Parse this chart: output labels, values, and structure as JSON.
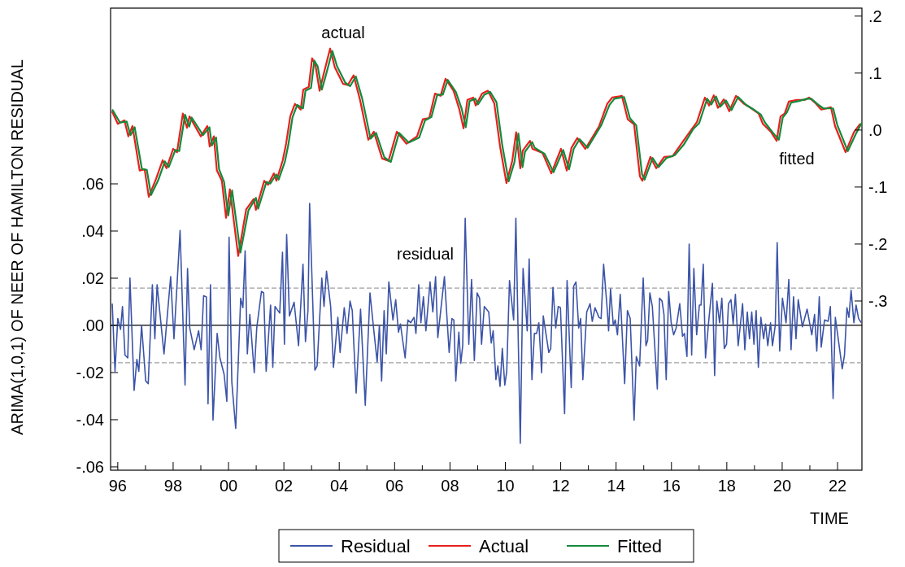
{
  "chart_data": {
    "type": "line",
    "xlabel": "TIME",
    "ylabel": "ARIMA(1,0,1) OF NEER OF HAMILTON RESIDUAL",
    "xlim": [
      1995.74,
      2022.88
    ],
    "xticks": [
      {
        "value": 1996,
        "label": "96"
      },
      {
        "value": 1997,
        "label": null
      },
      {
        "value": 1998,
        "label": "98"
      },
      {
        "value": 1999,
        "label": null
      },
      {
        "value": 2000,
        "label": "00"
      },
      {
        "value": 2001,
        "label": null
      },
      {
        "value": 2002,
        "label": "02"
      },
      {
        "value": 2003,
        "label": null
      },
      {
        "value": 2004,
        "label": "04"
      },
      {
        "value": 2005,
        "label": null
      },
      {
        "value": 2006,
        "label": "06"
      },
      {
        "value": 2007,
        "label": null
      },
      {
        "value": 2008,
        "label": "08"
      },
      {
        "value": 2009,
        "label": null
      },
      {
        "value": 2010,
        "label": "10"
      },
      {
        "value": 2011,
        "label": null
      },
      {
        "value": 2012,
        "label": "12"
      },
      {
        "value": 2013,
        "label": null
      },
      {
        "value": 2014,
        "label": "14"
      },
      {
        "value": 2015,
        "label": null
      },
      {
        "value": 2016,
        "label": "16"
      },
      {
        "value": 2017,
        "label": null
      },
      {
        "value": 2018,
        "label": "18"
      },
      {
        "value": 2019,
        "label": null
      },
      {
        "value": 2020,
        "label": "20"
      },
      {
        "value": 2021,
        "label": null
      },
      {
        "value": 2022,
        "label": "22"
      }
    ],
    "ylim": [
      -0.0614,
      0.1345
    ],
    "yticks": [
      {
        "value": -0.06,
        "label": "-.06"
      },
      {
        "value": -0.04,
        "label": "-.04"
      },
      {
        "value": -0.02,
        "label": "-.02"
      },
      {
        "value": 0,
        "label": ".00"
      },
      {
        "value": 0.02,
        "label": ".02"
      },
      {
        "value": 0.04,
        "label": ".04"
      },
      {
        "value": 0.06,
        "label": ".06"
      }
    ],
    "y2lim": [
      -0.597,
      0.214
    ],
    "y2ticks": [
      {
        "value": -0.3,
        "label": "-.3"
      },
      {
        "value": -0.2,
        "label": "-.2"
      },
      {
        "value": -0.1,
        "label": "-.1"
      },
      {
        "value": 0,
        "label": ".0"
      },
      {
        "value": 0.1,
        "label": ".1"
      },
      {
        "value": 0.2,
        "label": ".2"
      }
    ],
    "grid": false,
    "legend": "bottom",
    "marker": "none",
    "line_style": "solid",
    "ref_lines": [
      {
        "axis": "y",
        "value": 0,
        "color": "#000000",
        "line_style": "solid"
      },
      {
        "axis": "y",
        "value": 0.0158,
        "color": "#a0a0a0",
        "line_style": "dashed"
      },
      {
        "axis": "y",
        "value": -0.0158,
        "color": "#a0a0a0",
        "line_style": "dashed"
      }
    ],
    "annotations": [
      "actual",
      "fitted",
      "residual"
    ],
    "series": [
      {
        "name": "Residual",
        "color": "#3c54a8",
        "x": [
          1995.8,
          1995.9,
          1996.0,
          1996.1,
          1996.17,
          1996.26,
          1996.36,
          1996.44,
          1996.59,
          1996.69,
          1996.76,
          1996.86,
          1997.01,
          1997.1,
          1997.25,
          1997.34,
          1997.42,
          1997.67,
          1997.91,
          1998.03,
          1998.25,
          1998.43,
          1998.52,
          1998.6,
          1998.76,
          1998.92,
          1999.01,
          1999.1,
          1999.2,
          1999.26,
          1999.35,
          1999.44,
          1999.59,
          1999.69,
          1999.84,
          1999.94,
          2000.02,
          2000.12,
          2000.26,
          2000.44,
          2000.52,
          2000.6,
          2000.68,
          2000.77,
          2000.93,
          2001.02,
          2001.19,
          2001.27,
          2001.36,
          2001.52,
          2001.6,
          2001.68,
          2001.85,
          2001.95,
          2002.02,
          2002.1,
          2002.2,
          2002.37,
          2002.53,
          2002.69,
          2002.78,
          2002.87,
          2002.93,
          2003.12,
          2003.2,
          2003.37,
          2003.45,
          2003.54,
          2003.69,
          2003.79,
          2003.95,
          2004.03,
          2004.18,
          2004.28,
          2004.39,
          2004.47,
          2004.61,
          2004.77,
          2004.94,
          2005.11,
          2005.25,
          2005.37,
          2005.45,
          2005.53,
          2005.62,
          2005.7,
          2005.79,
          2005.94,
          2006.04,
          2006.14,
          2006.21,
          2006.38,
          2006.48,
          2006.58,
          2006.7,
          2006.77,
          2006.87,
          2006.95,
          2007.04,
          2007.13,
          2007.28,
          2007.38,
          2007.48,
          2007.56,
          2007.65,
          2007.8,
          2007.97,
          2008.07,
          2008.14,
          2008.21,
          2008.32,
          2008.39,
          2008.46,
          2008.55,
          2008.68,
          2008.78,
          2008.88,
          2008.98,
          2009.07,
          2009.14,
          2009.24,
          2009.4,
          2009.49,
          2009.56,
          2009.66,
          2009.73,
          2009.81,
          2009.89,
          2009.98,
          2010.05,
          2010.15,
          2010.3,
          2010.38,
          2010.54,
          2010.64,
          2010.79,
          2010.86,
          2010.96,
          2011.05,
          2011.13,
          2011.21,
          2011.31,
          2011.37,
          2011.57,
          2011.64,
          2011.72,
          2011.82,
          2011.91,
          2011.99,
          2012.14,
          2012.23,
          2012.38,
          2012.47,
          2012.55,
          2012.65,
          2012.72,
          2012.8,
          2012.94,
          2013.06,
          2013.14,
          2013.24,
          2013.38,
          2013.46,
          2013.55,
          2013.68,
          2013.73,
          2013.8,
          2013.9,
          2013.97,
          2014.05,
          2014.15,
          2014.31,
          2014.41,
          2014.51,
          2014.65,
          2014.73,
          2014.85,
          2014.98,
          2015.08,
          2015.14,
          2015.22,
          2015.31,
          2015.49,
          2015.57,
          2015.66,
          2015.73,
          2015.81,
          2015.9,
          2015.99,
          2016.08,
          2016.17,
          2016.3,
          2016.4,
          2016.47,
          2016.56,
          2016.64,
          2016.73,
          2016.81,
          2016.91,
          2017.01,
          2017.07,
          2017.15,
          2017.23,
          2017.35,
          2017.48,
          2017.56,
          2017.64,
          2017.74,
          2017.82,
          2017.91,
          2017.99,
          2018.06,
          2018.15,
          2018.23,
          2018.31,
          2018.41,
          2018.57,
          2018.65,
          2018.74,
          2018.82,
          2018.9,
          2018.98,
          2019.06,
          2019.14,
          2019.23,
          2019.33,
          2019.4,
          2019.48,
          2019.58,
          2019.65,
          2019.75,
          2019.82,
          2019.91,
          2020.01,
          2020.14,
          2020.24,
          2020.32,
          2020.41,
          2020.5,
          2020.58,
          2020.73,
          2020.9,
          2021.07,
          2021.17,
          2021.25,
          2021.34,
          2021.41,
          2021.53,
          2021.66,
          2021.74,
          2021.84,
          2021.92,
          2022.17,
          2022.25,
          2022.34,
          2022.41,
          2022.49,
          2022.59,
          2022.67,
          2022.76,
          2022.86
        ],
        "values": [
          0.0092,
          -0.0195,
          0.0029,
          -0.0017,
          0.008,
          -0.0126,
          -0.0138,
          0.0201,
          -0.0276,
          -0.0144,
          -0.0195,
          0.0,
          -0.0236,
          -0.0247,
          0.0172,
          -0.0057,
          0.0172,
          -0.0121,
          0.0207,
          -0.0057,
          0.0402,
          -0.0253,
          0.0241,
          -0.0011,
          -0.0103,
          -0.0023,
          -0.0103,
          0.0126,
          0.0121,
          -0.0333,
          0.0172,
          -0.0402,
          -0.0034,
          -0.0138,
          -0.0207,
          -0.0322,
          0.0374,
          -0.0241,
          -0.0437,
          0.0115,
          0.0075,
          0.0316,
          -0.0121,
          0.0046,
          -0.0201,
          -0.0011,
          0.0144,
          0.0138,
          -0.0195,
          0.0086,
          -0.0178,
          0.008,
          0.0052,
          0.031,
          -0.008,
          0.0385,
          0.004,
          0.0098,
          -0.0086,
          0.0259,
          -0.0069,
          0.0063,
          0.0517,
          -0.019,
          -0.0172,
          0.0201,
          0.008,
          0.023,
          0.008,
          -0.0178,
          0.0034,
          -0.0115,
          0.0075,
          -0.0034,
          0.0103,
          0.0063,
          -0.0287,
          0.0069,
          -0.0339,
          0.0138,
          -0.0023,
          -0.0155,
          0.0,
          -0.0236,
          0.0063,
          -0.0121,
          0.0184,
          0.0023,
          0.0109,
          -0.0029,
          0.0006,
          -0.0138,
          0.0023,
          0.0011,
          0.0034,
          -0.0034,
          0.0172,
          0.0011,
          0.0121,
          -0.0023,
          0.0184,
          0.0057,
          0.0207,
          -0.0052,
          0.0046,
          0.0207,
          -0.0115,
          0.0029,
          0.0023,
          -0.0236,
          -0.0029,
          -0.0161,
          -0.0086,
          0.0454,
          -0.008,
          0.0195,
          -0.0149,
          0.0138,
          0.0115,
          -0.008,
          0.008,
          0.0057,
          -0.0075,
          -0.0023,
          -0.023,
          -0.0172,
          -0.0259,
          -0.0098,
          -0.0253,
          -0.0195,
          0.019,
          0.0023,
          0.0454,
          -0.05,
          0.0241,
          -0.0023,
          0.0282,
          -0.023,
          -0.0034,
          -0.0034,
          0.0011,
          -0.0201,
          0.004,
          -0.0115,
          -0.0098,
          0.0161,
          -0.0011,
          0.008,
          0.0075,
          -0.0374,
          0.019,
          -0.0264,
          0.0167,
          0.0184,
          -0.0011,
          0.0029,
          -0.023,
          0.0057,
          0.0092,
          0.0017,
          0.0075,
          0.0034,
          0.0029,
          0.0259,
          0.0069,
          -0.0023,
          0.0155,
          0.0,
          0.0023,
          -0.004,
          0.0132,
          -0.0247,
          0.0063,
          0.0029,
          -0.0402,
          -0.0132,
          -0.0172,
          0.0201,
          -0.0086,
          -0.0063,
          0.0138,
          0.008,
          -0.027,
          0.0115,
          0.0103,
          0.0046,
          -0.023,
          0.0144,
          0.0011,
          -0.004,
          -0.0011,
          0.0092,
          -0.0046,
          -0.0034,
          -0.0132,
          0.0345,
          -0.0126,
          0.0241,
          -0.004,
          0.0086,
          0.0086,
          0.0259,
          -0.0138,
          0.0023,
          0.0178,
          -0.0213,
          0.0103,
          0.0011,
          0.0115,
          -0.0098,
          -0.008,
          0.0092,
          0.0109,
          0.0006,
          0.0132,
          -0.0086,
          0.0092,
          -0.0103,
          0.0057,
          -0.0057,
          0.0057,
          -0.008,
          0.0063,
          -0.0178,
          0.0034,
          -0.0057,
          0.0006,
          -0.0086,
          0.0011,
          -0.0086,
          0.0,
          0.0351,
          -0.0109,
          0.0115,
          0.0011,
          0.0195,
          -0.0103,
          0.0121,
          -0.0057,
          0.0109,
          -0.0006,
          0.0069,
          -0.004,
          0.0046,
          -0.0109,
          0.0121,
          -0.0092,
          0.0023,
          0.0017,
          0.008,
          -0.031,
          0.0034,
          -0.0184,
          -0.0126,
          0.0075,
          0.0034,
          0.0149,
          0.0011,
          0.0086,
          0.0029,
          0.0011
        ]
      },
      {
        "name": "Actual",
        "color": "#e8201c",
        "axis": "y2",
        "x": [
          1995.79,
          1996.0,
          1996.24,
          1996.38,
          1996.53,
          1996.79,
          1996.97,
          1997.12,
          1997.38,
          1997.62,
          1997.76,
          1998.0,
          1998.14,
          1998.35,
          1998.5,
          1998.59,
          1999.0,
          1999.23,
          1999.32,
          1999.47,
          1999.58,
          1999.76,
          1999.91,
          2000.05,
          2000.35,
          2000.64,
          2000.91,
          2000.99,
          2001.29,
          2001.43,
          2001.64,
          2001.73,
          2001.96,
          2002.08,
          2002.23,
          2002.4,
          2002.61,
          2002.7,
          2002.9,
          2003.02,
          2003.14,
          2003.29,
          2003.43,
          2003.67,
          2003.84,
          2004.14,
          2004.31,
          2004.52,
          2004.75,
          2005.05,
          2005.25,
          2005.55,
          2005.78,
          2006.08,
          2006.43,
          2006.81,
          2007.02,
          2007.25,
          2007.46,
          2007.66,
          2007.84,
          2008.13,
          2008.34,
          2008.49,
          2008.63,
          2008.84,
          2008.93,
          2009.16,
          2009.37,
          2009.6,
          2009.81,
          2010.04,
          2010.25,
          2010.39,
          2010.54,
          2010.63,
          2010.89,
          2010.98,
          2011.34,
          2011.66,
          2012.01,
          2012.22,
          2012.39,
          2012.6,
          2012.89,
          2013.39,
          2013.68,
          2013.86,
          2014.21,
          2014.42,
          2014.65,
          2014.86,
          2014.95,
          2015.24,
          2015.45,
          2015.74,
          2016.04,
          2016.36,
          2016.71,
          2016.92,
          2017.21,
          2017.36,
          2017.53,
          2017.68,
          2017.89,
          2018.09,
          2018.33,
          2018.62,
          2018.86,
          2019.15,
          2019.3,
          2019.59,
          2019.8,
          2019.94,
          2020.09,
          2020.24,
          2020.53,
          2020.82,
          2020.97,
          2021.21,
          2021.41,
          2021.76,
          2021.91,
          2022.29,
          2022.59,
          2022.82
        ],
        "values": [
          0.033,
          0.011,
          0.017,
          -0.011,
          0.007,
          -0.071,
          -0.069,
          -0.117,
          -0.086,
          -0.053,
          -0.067,
          -0.033,
          -0.039,
          0.029,
          0.004,
          0.024,
          -0.011,
          0.007,
          -0.029,
          -0.011,
          -0.071,
          -0.089,
          -0.154,
          -0.104,
          -0.221,
          -0.139,
          -0.121,
          -0.14,
          -0.089,
          -0.096,
          -0.076,
          -0.089,
          -0.053,
          -0.024,
          0.024,
          0.046,
          0.036,
          0.071,
          0.076,
          0.126,
          0.114,
          0.069,
          0.097,
          0.143,
          0.11,
          0.081,
          0.079,
          0.096,
          0.053,
          -0.017,
          -0.003,
          -0.05,
          -0.054,
          -0.003,
          -0.024,
          -0.011,
          0.019,
          0.021,
          0.064,
          0.06,
          0.09,
          0.069,
          0.036,
          0.003,
          0.053,
          0.057,
          0.043,
          0.064,
          0.069,
          0.047,
          -0.029,
          -0.093,
          -0.054,
          -0.004,
          -0.067,
          -0.036,
          -0.019,
          -0.033,
          -0.04,
          -0.076,
          -0.033,
          -0.071,
          -0.031,
          -0.014,
          -0.033,
          0.007,
          0.046,
          0.057,
          0.06,
          0.019,
          0.01,
          -0.081,
          -0.089,
          -0.047,
          -0.067,
          -0.047,
          -0.046,
          -0.024,
          0.0,
          0.014,
          0.057,
          0.043,
          0.061,
          0.039,
          0.054,
          0.033,
          0.06,
          0.046,
          0.039,
          0.029,
          0.011,
          -0.003,
          -0.019,
          0.024,
          0.029,
          0.05,
          0.053,
          0.053,
          0.057,
          0.047,
          0.036,
          0.04,
          0.007,
          -0.039,
          -0.004,
          0.011
        ]
      },
      {
        "name": "Fitted",
        "color": "#138a3c",
        "axis": "y2",
        "x": [
          1995.8,
          1996.08,
          1996.32,
          1996.46,
          1996.61,
          1996.87,
          1997.05,
          1997.2,
          1997.46,
          1997.7,
          1997.84,
          1998.08,
          1998.22,
          1998.43,
          1998.58,
          1998.67,
          1999.08,
          1999.31,
          1999.4,
          1999.55,
          1999.66,
          1999.84,
          1999.99,
          2000.13,
          2000.43,
          2000.72,
          2000.99,
          2001.07,
          2001.37,
          2001.51,
          2001.72,
          2001.81,
          2002.04,
          2002.16,
          2002.31,
          2002.48,
          2002.69,
          2002.78,
          2002.98,
          2003.1,
          2003.22,
          2003.37,
          2003.51,
          2003.75,
          2003.92,
          2004.22,
          2004.39,
          2004.6,
          2004.83,
          2005.13,
          2005.33,
          2005.63,
          2005.86,
          2006.16,
          2006.51,
          2006.89,
          2007.1,
          2007.33,
          2007.54,
          2007.74,
          2007.92,
          2008.21,
          2008.42,
          2008.57,
          2008.71,
          2008.92,
          2009.01,
          2009.24,
          2009.45,
          2009.68,
          2009.89,
          2010.12,
          2010.33,
          2010.47,
          2010.62,
          2010.71,
          2010.97,
          2011.06,
          2011.42,
          2011.74,
          2012.09,
          2012.3,
          2012.47,
          2012.68,
          2012.97,
          2013.47,
          2013.76,
          2013.94,
          2014.29,
          2014.5,
          2014.73,
          2014.94,
          2015.03,
          2015.32,
          2015.53,
          2015.82,
          2016.12,
          2016.44,
          2016.79,
          2017.0,
          2017.29,
          2017.44,
          2017.61,
          2017.76,
          2017.97,
          2018.17,
          2018.41,
          2018.7,
          2018.94,
          2019.23,
          2019.38,
          2019.67,
          2019.88,
          2020.02,
          2020.17,
          2020.32,
          2020.61,
          2020.9,
          2021.05,
          2021.29,
          2021.49,
          2021.84,
          2021.99,
          2022.37,
          2022.67,
          2022.88
        ],
        "values": [
          0.036,
          0.013,
          0.015,
          -0.009,
          0.005,
          -0.068,
          -0.07,
          -0.114,
          -0.088,
          -0.055,
          -0.065,
          -0.035,
          -0.037,
          0.027,
          0.006,
          0.022,
          -0.009,
          0.005,
          -0.027,
          -0.013,
          -0.069,
          -0.091,
          -0.15,
          -0.106,
          -0.215,
          -0.141,
          -0.119,
          -0.138,
          -0.091,
          -0.094,
          -0.078,
          -0.087,
          -0.055,
          -0.026,
          0.022,
          0.044,
          0.038,
          0.069,
          0.074,
          0.122,
          0.112,
          0.071,
          0.095,
          0.139,
          0.112,
          0.083,
          0.077,
          0.094,
          0.055,
          -0.015,
          -0.005,
          -0.048,
          -0.056,
          -0.005,
          -0.022,
          -0.013,
          0.017,
          0.023,
          0.062,
          0.062,
          0.088,
          0.067,
          0.038,
          0.005,
          0.051,
          0.055,
          0.045,
          0.062,
          0.067,
          0.049,
          -0.027,
          -0.09,
          -0.056,
          -0.006,
          -0.065,
          -0.038,
          -0.021,
          -0.031,
          -0.042,
          -0.074,
          -0.035,
          -0.069,
          -0.033,
          -0.016,
          -0.031,
          0.009,
          0.044,
          0.055,
          0.058,
          0.021,
          0.008,
          -0.078,
          -0.087,
          -0.049,
          -0.065,
          -0.049,
          -0.044,
          -0.026,
          0.002,
          0.012,
          0.055,
          0.045,
          0.059,
          0.041,
          0.052,
          0.035,
          0.058,
          0.044,
          0.037,
          0.027,
          0.013,
          -0.005,
          -0.017,
          0.022,
          0.031,
          0.048,
          0.051,
          0.055,
          0.055,
          0.045,
          0.038,
          0.038,
          0.009,
          -0.037,
          -0.006,
          0.013
        ]
      }
    ]
  }
}
